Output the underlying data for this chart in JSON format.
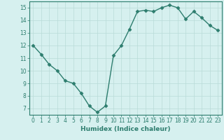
{
  "x": [
    0,
    1,
    2,
    3,
    4,
    5,
    6,
    7,
    8,
    9,
    10,
    11,
    12,
    13,
    14,
    15,
    16,
    17,
    18,
    19,
    20,
    21,
    22,
    23
  ],
  "y": [
    12.0,
    11.3,
    10.5,
    10.0,
    9.2,
    9.0,
    8.2,
    7.2,
    6.7,
    7.2,
    11.2,
    12.0,
    13.3,
    14.7,
    14.8,
    14.7,
    15.0,
    15.2,
    15.0,
    14.1,
    14.7,
    14.2,
    13.6,
    13.2
  ],
  "line_color": "#2d7d6e",
  "marker": "D",
  "marker_size": 2.5,
  "bg_color": "#d6f0ef",
  "grid_color": "#b8dbd8",
  "xlabel": "Humidex (Indice chaleur)",
  "xlim": [
    -0.5,
    23.5
  ],
  "ylim": [
    6.5,
    15.5
  ],
  "yticks": [
    7,
    8,
    9,
    10,
    11,
    12,
    13,
    14,
    15
  ],
  "xticks": [
    0,
    1,
    2,
    3,
    4,
    5,
    6,
    7,
    8,
    9,
    10,
    11,
    12,
    13,
    14,
    15,
    16,
    17,
    18,
    19,
    20,
    21,
    22,
    23
  ],
  "tick_label_fontsize": 5.5,
  "xlabel_fontsize": 6.5,
  "linewidth": 1.0
}
